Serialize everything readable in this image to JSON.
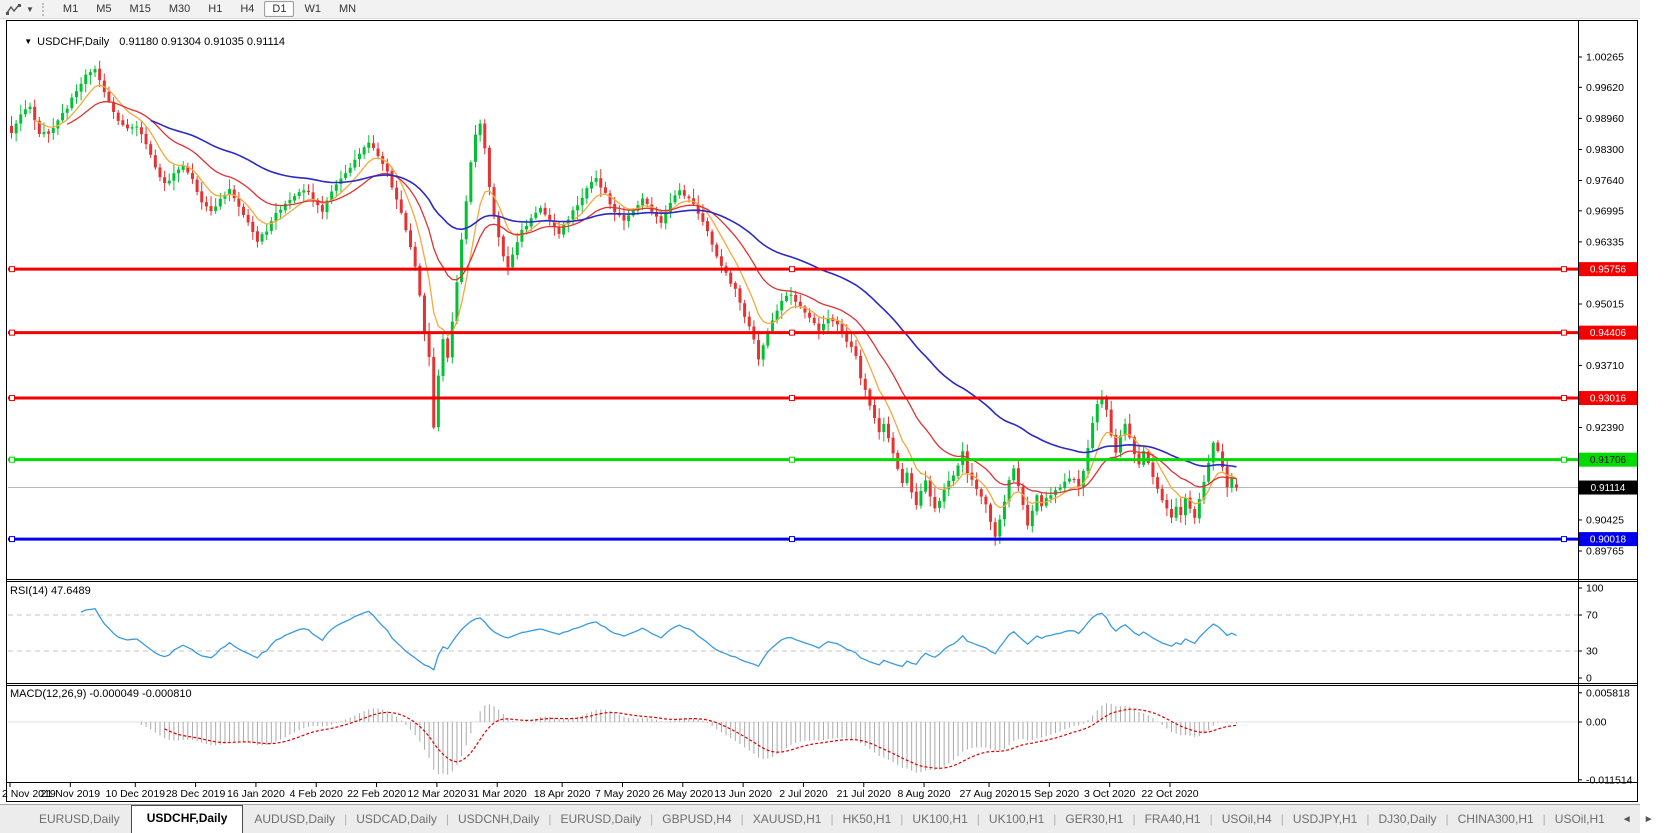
{
  "toolbar": {
    "timeframes": [
      "M1",
      "M5",
      "M15",
      "M30",
      "H1",
      "H4",
      "D1",
      "W1",
      "MN"
    ],
    "active_timeframe": "D1",
    "dropdown_caret": "▼"
  },
  "title": {
    "caret": "▼",
    "symbol": "USDCHF,Daily",
    "ohlc_text": "0.91180 0.91304 0.91035 0.91114"
  },
  "panels": {
    "rsi_label": "RSI(14) 47.6489",
    "macd_label": "MACD(12,26,9) -0.000049 -0.000810"
  },
  "chart_data": {
    "type": "candlestick",
    "symbol": "USDCHF",
    "timeframe": "Daily",
    "bars": 265,
    "last_bar_ohlc": {
      "open": 0.9118,
      "high": 0.91304,
      "low": 0.91035,
      "close": 0.91114
    },
    "price_range": [
      0.89765,
      1.00265
    ],
    "price_ticks": [
      {
        "label": "1.00265",
        "value": 1.00265
      },
      {
        "label": "0.99620",
        "value": 0.9962
      },
      {
        "label": "0.98960",
        "value": 0.9896
      },
      {
        "label": "0.98300",
        "value": 0.983
      },
      {
        "label": "0.97640",
        "value": 0.9764
      },
      {
        "label": "0.96995",
        "value": 0.96995
      },
      {
        "label": "0.96335",
        "value": 0.96335
      },
      {
        "label": "0.95015",
        "value": 0.95015
      },
      {
        "label": "0.93710",
        "value": 0.9371
      },
      {
        "label": "0.92390",
        "value": 0.9239
      },
      {
        "label": "0.90425",
        "value": 0.90425
      },
      {
        "label": "0.89765",
        "value": 0.89765
      }
    ],
    "hlines": [
      {
        "label": "0.95756",
        "value": 0.95756,
        "color": "#f40000",
        "text_color": "#ffffff",
        "width": 3,
        "handles": true
      },
      {
        "label": "0.94406",
        "value": 0.94406,
        "color": "#f40000",
        "text_color": "#ffffff",
        "width": 3,
        "handles": true
      },
      {
        "label": "0.93016",
        "value": 0.93016,
        "color": "#f40000",
        "text_color": "#ffffff",
        "width": 3,
        "handles": true
      },
      {
        "label": "0.91706",
        "value": 0.91706,
        "color": "#00dc00",
        "text_color": "#000000",
        "width": 3,
        "handles": true
      },
      {
        "label": "0.91114",
        "value": 0.91114,
        "color": "#b8b8b8",
        "text_color": "#ffffff",
        "tag_color": "#000000",
        "width": 1,
        "handles": false,
        "current_price": true
      },
      {
        "label": "0.90018",
        "value": 0.90018,
        "color": "#0000ee",
        "text_color": "#ffffff",
        "width": 3,
        "handles": true
      }
    ],
    "moving_averages": [
      {
        "period": 8,
        "color": "#f6a83c"
      },
      {
        "period": 21,
        "color": "#e03232"
      },
      {
        "period": 55,
        "color": "#2a2ac4"
      }
    ],
    "candle_up_color": "#00c132",
    "candle_down_color": "#e53232",
    "price_anchors": [
      [
        0,
        0.9865
      ],
      [
        2,
        0.99
      ],
      [
        4,
        0.9925
      ],
      [
        6,
        0.9865
      ],
      [
        8,
        0.986
      ],
      [
        10,
        0.989
      ],
      [
        12,
        0.992
      ],
      [
        14,
        0.9955
      ],
      [
        16,
        0.999
      ],
      [
        18,
        1.0
      ],
      [
        19,
        0.9975
      ],
      [
        21,
        0.993
      ],
      [
        23,
        0.9895
      ],
      [
        25,
        0.9875
      ],
      [
        27,
        0.988
      ],
      [
        29,
        0.984
      ],
      [
        31,
        0.979
      ],
      [
        33,
        0.9755
      ],
      [
        35,
        0.978
      ],
      [
        37,
        0.9795
      ],
      [
        39,
        0.977
      ],
      [
        41,
        0.9715
      ],
      [
        43,
        0.97
      ],
      [
        45,
        0.9725
      ],
      [
        47,
        0.9745
      ],
      [
        49,
        0.971
      ],
      [
        51,
        0.9675
      ],
      [
        53,
        0.9635
      ],
      [
        55,
        0.966
      ],
      [
        57,
        0.9695
      ],
      [
        59,
        0.9715
      ],
      [
        61,
        0.973
      ],
      [
        63,
        0.9745
      ],
      [
        65,
        0.9725
      ],
      [
        67,
        0.97
      ],
      [
        69,
        0.9745
      ],
      [
        71,
        0.977
      ],
      [
        73,
        0.9795
      ],
      [
        75,
        0.982
      ],
      [
        77,
        0.9845
      ],
      [
        79,
        0.9815
      ],
      [
        81,
        0.978
      ],
      [
        83,
        0.9725
      ],
      [
        85,
        0.966
      ],
      [
        87,
        0.9585
      ],
      [
        88,
        0.952
      ],
      [
        89,
        0.9445
      ],
      [
        90,
        0.9385
      ],
      [
        91,
        0.9235
      ],
      [
        92,
        0.9345
      ],
      [
        93,
        0.9425
      ],
      [
        94,
        0.939
      ],
      [
        95,
        0.9465
      ],
      [
        96,
        0.955
      ],
      [
        97,
        0.9635
      ],
      [
        98,
        0.972
      ],
      [
        99,
        0.98
      ],
      [
        100,
        0.9865
      ],
      [
        101,
        0.9885
      ],
      [
        102,
        0.9835
      ],
      [
        103,
        0.975
      ],
      [
        104,
        0.9685
      ],
      [
        105,
        0.9645
      ],
      [
        106,
        0.96
      ],
      [
        107,
        0.9575
      ],
      [
        108,
        0.961
      ],
      [
        110,
        0.9655
      ],
      [
        112,
        0.9685
      ],
      [
        114,
        0.9705
      ],
      [
        116,
        0.968
      ],
      [
        118,
        0.9655
      ],
      [
        120,
        0.9685
      ],
      [
        122,
        0.9715
      ],
      [
        124,
        0.9745
      ],
      [
        126,
        0.977
      ],
      [
        128,
        0.9735
      ],
      [
        130,
        0.97
      ],
      [
        132,
        0.9675
      ],
      [
        134,
        0.9705
      ],
      [
        136,
        0.9725
      ],
      [
        138,
        0.97
      ],
      [
        140,
        0.9675
      ],
      [
        142,
        0.9715
      ],
      [
        144,
        0.9745
      ],
      [
        146,
        0.9725
      ],
      [
        148,
        0.9695
      ],
      [
        150,
        0.9655
      ],
      [
        152,
        0.9605
      ],
      [
        154,
        0.9565
      ],
      [
        156,
        0.953
      ],
      [
        158,
        0.9475
      ],
      [
        160,
        0.9425
      ],
      [
        161,
        0.9385
      ],
      [
        162,
        0.9415
      ],
      [
        164,
        0.9465
      ],
      [
        166,
        0.9505
      ],
      [
        168,
        0.9525
      ],
      [
        170,
        0.9495
      ],
      [
        172,
        0.947
      ],
      [
        174,
        0.9445
      ],
      [
        176,
        0.9475
      ],
      [
        178,
        0.9455
      ],
      [
        180,
        0.9425
      ],
      [
        182,
        0.9395
      ],
      [
        183,
        0.9345
      ],
      [
        184,
        0.9315
      ],
      [
        185,
        0.9285
      ],
      [
        186,
        0.9255
      ],
      [
        187,
        0.9225
      ],
      [
        188,
        0.9245
      ],
      [
        189,
        0.9215
      ],
      [
        190,
        0.9185
      ],
      [
        191,
        0.9155
      ],
      [
        192,
        0.9125
      ],
      [
        193,
        0.9145
      ],
      [
        194,
        0.9105
      ],
      [
        195,
        0.9075
      ],
      [
        196,
        0.9105
      ],
      [
        197,
        0.9125
      ],
      [
        198,
        0.909
      ],
      [
        199,
        0.9065
      ],
      [
        200,
        0.9085
      ],
      [
        202,
        0.9125
      ],
      [
        204,
        0.9155
      ],
      [
        205,
        0.9185
      ],
      [
        206,
        0.9145
      ],
      [
        208,
        0.9105
      ],
      [
        210,
        0.9075
      ],
      [
        211,
        0.9035
      ],
      [
        212,
        0.9005
      ],
      [
        213,
        0.9045
      ],
      [
        214,
        0.9085
      ],
      [
        215,
        0.9125
      ],
      [
        216,
        0.9155
      ],
      [
        217,
        0.9115
      ],
      [
        218,
        0.9075
      ],
      [
        219,
        0.9035
      ],
      [
        220,
        0.9065
      ],
      [
        221,
        0.9095
      ],
      [
        222,
        0.9075
      ],
      [
        224,
        0.9095
      ],
      [
        226,
        0.9115
      ],
      [
        228,
        0.9135
      ],
      [
        230,
        0.9115
      ],
      [
        231,
        0.9145
      ],
      [
        232,
        0.9195
      ],
      [
        233,
        0.9245
      ],
      [
        234,
        0.9285
      ],
      [
        235,
        0.9305
      ],
      [
        236,
        0.9275
      ],
      [
        237,
        0.9225
      ],
      [
        238,
        0.9185
      ],
      [
        239,
        0.9225
      ],
      [
        240,
        0.9245
      ],
      [
        241,
        0.9215
      ],
      [
        242,
        0.9185
      ],
      [
        243,
        0.9165
      ],
      [
        244,
        0.9185
      ],
      [
        245,
        0.9165
      ],
      [
        246,
        0.9135
      ],
      [
        247,
        0.9105
      ],
      [
        248,
        0.9085
      ],
      [
        249,
        0.9065
      ],
      [
        250,
        0.9045
      ],
      [
        251,
        0.9075
      ],
      [
        252,
        0.9055
      ],
      [
        253,
        0.9085
      ],
      [
        254,
        0.9065
      ],
      [
        255,
        0.9045
      ],
      [
        256,
        0.9085
      ],
      [
        257,
        0.9125
      ],
      [
        258,
        0.9165
      ],
      [
        259,
        0.9205
      ],
      [
        260,
        0.9185
      ],
      [
        261,
        0.9155
      ],
      [
        262,
        0.9115
      ],
      [
        263,
        0.9135
      ],
      [
        264,
        0.9111
      ]
    ],
    "rsi": {
      "period": 14,
      "current": 47.6489,
      "color": "#3a9ade",
      "ticks": [
        {
          "label": "100",
          "value": 100
        },
        {
          "label": "70",
          "value": 70
        },
        {
          "label": "30",
          "value": 30
        },
        {
          "label": "0",
          "value": 0
        }
      ],
      "levels": [
        70,
        30
      ]
    },
    "macd": {
      "fast": 12,
      "slow": 26,
      "signal": 9,
      "current": -4.9e-05,
      "signal_current": -0.00081,
      "hist_color": "#aaaaaa",
      "signal_color": "#e00000",
      "ticks": [
        {
          "label": "0.005818",
          "value": 0.005818
        },
        {
          "label": "0.00",
          "value": 0.0
        },
        {
          "label": "-0.011514",
          "value": -0.011514
        }
      ]
    },
    "x_axis_labels": [
      {
        "text": "2 Nov 2019",
        "day": 0
      },
      {
        "text": "21 Nov 2019",
        "day": 13
      },
      {
        "text": "10 Dec 2019",
        "day": 27
      },
      {
        "text": "28 Dec 2019",
        "day": 40
      },
      {
        "text": "16 Jan 2020",
        "day": 53
      },
      {
        "text": "4 Feb 2020",
        "day": 66
      },
      {
        "text": "22 Feb 2020",
        "day": 79
      },
      {
        "text": "12 Mar 2020",
        "day": 92
      },
      {
        "text": "31 Mar 2020",
        "day": 105
      },
      {
        "text": "18 Apr 2020",
        "day": 119
      },
      {
        "text": "7 May 2020",
        "day": 132
      },
      {
        "text": "26 May 2020",
        "day": 145
      },
      {
        "text": "13 Jun 2020",
        "day": 158
      },
      {
        "text": "2 Jul 2020",
        "day": 171
      },
      {
        "text": "21 Jul 2020",
        "day": 184
      },
      {
        "text": "8 Aug 2020",
        "day": 197
      },
      {
        "text": "27 Aug 2020",
        "day": 211
      },
      {
        "text": "15 Sep 2020",
        "day": 224
      },
      {
        "text": "3 Oct 2020",
        "day": 237
      },
      {
        "text": "22 Oct 2020",
        "day": 250
      }
    ]
  },
  "tabs": {
    "items": [
      {
        "label": "EURUSD,Daily",
        "active": false
      },
      {
        "label": "USDCHF,Daily",
        "active": true
      },
      {
        "label": "AUDUSD,Daily",
        "active": false
      },
      {
        "label": "USDCAD,Daily",
        "active": false
      },
      {
        "label": "USDCNH,Daily",
        "active": false
      },
      {
        "label": "EURUSD,Daily",
        "active": false
      },
      {
        "label": "GBPUSD,H4",
        "active": false
      },
      {
        "label": "XAUUSD,H1",
        "active": false
      },
      {
        "label": "HK50,H1",
        "active": false
      },
      {
        "label": "UK100,H1",
        "active": false
      },
      {
        "label": "UK100,H1",
        "active": false
      },
      {
        "label": "GER30,H1",
        "active": false
      },
      {
        "label": "FRA40,H1",
        "active": false
      },
      {
        "label": "USOil,H4",
        "active": false
      },
      {
        "label": "USDJPY,H1",
        "active": false
      },
      {
        "label": "DJ30,Daily",
        "active": false
      },
      {
        "label": "CHINA300,H1",
        "active": false
      },
      {
        "label": "USOil,H1",
        "active": false
      }
    ],
    "scroll_left": "◄",
    "scroll_right": "►"
  }
}
